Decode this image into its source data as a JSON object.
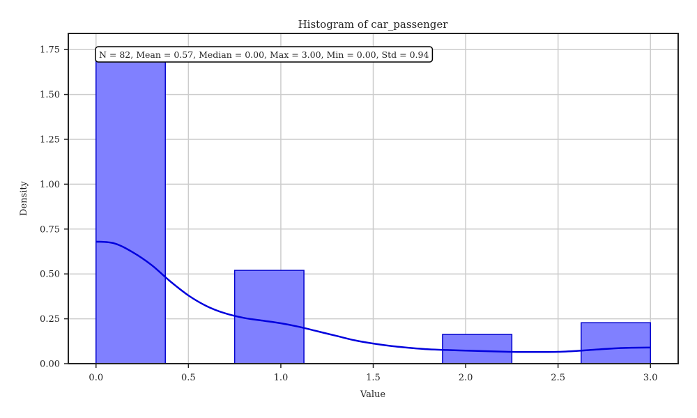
{
  "chart_data": {
    "type": "histogram",
    "title": "Histogram of car_passenger",
    "xlabel": "Value",
    "ylabel": "Density",
    "xlim": [
      -0.15,
      3.15
    ],
    "ylim": [
      0,
      1.84
    ],
    "x_ticks": [
      0.0,
      0.5,
      1.0,
      1.5,
      2.0,
      2.5,
      3.0
    ],
    "x_tick_labels": [
      "0.0",
      "0.5",
      "1.0",
      "1.5",
      "2.0",
      "2.5",
      "3.0"
    ],
    "y_ticks": [
      0.0,
      0.25,
      0.5,
      0.75,
      1.0,
      1.25,
      1.5,
      1.75
    ],
    "y_tick_labels": [
      "0.00",
      "0.25",
      "0.50",
      "0.75",
      "1.00",
      "1.25",
      "1.50",
      "1.75"
    ],
    "grid": true,
    "bin_edges": [
      0.0,
      0.375,
      0.75,
      1.125,
      1.5,
      1.875,
      2.25,
      2.625,
      3.0
    ],
    "bins": [
      {
        "x0": 0.0,
        "x1": 0.375,
        "density": 1.7
      },
      {
        "x0": 0.75,
        "x1": 1.125,
        "density": 0.52
      },
      {
        "x0": 1.875,
        "x1": 2.25,
        "density": 0.163
      },
      {
        "x0": 2.625,
        "x1": 3.0,
        "density": 0.228
      }
    ],
    "kde": {
      "x": [
        0.0,
        0.1,
        0.2,
        0.3,
        0.4,
        0.5,
        0.6,
        0.7,
        0.8,
        0.9,
        1.0,
        1.1,
        1.2,
        1.3,
        1.4,
        1.5,
        1.6,
        1.7,
        1.8,
        1.9,
        2.0,
        2.1,
        2.2,
        2.3,
        2.4,
        2.5,
        2.6,
        2.7,
        2.8,
        2.9,
        3.0
      ],
      "y": [
        0.68,
        0.67,
        0.62,
        0.55,
        0.46,
        0.38,
        0.32,
        0.28,
        0.255,
        0.24,
        0.225,
        0.205,
        0.18,
        0.155,
        0.13,
        0.112,
        0.098,
        0.088,
        0.08,
        0.076,
        0.073,
        0.07,
        0.067,
        0.065,
        0.065,
        0.066,
        0.071,
        0.078,
        0.085,
        0.089,
        0.09
      ]
    },
    "stats_text": "N = 82, Mean = 0.57, Median = 0.00, Max = 3.00, Min = 0.00, Std = 0.94",
    "colors": {
      "bar_fill": "#8080ff",
      "bar_edge": "#0000cc",
      "kde_line": "#0000dd",
      "grid": "#cccccc",
      "axis": "#222222"
    }
  }
}
